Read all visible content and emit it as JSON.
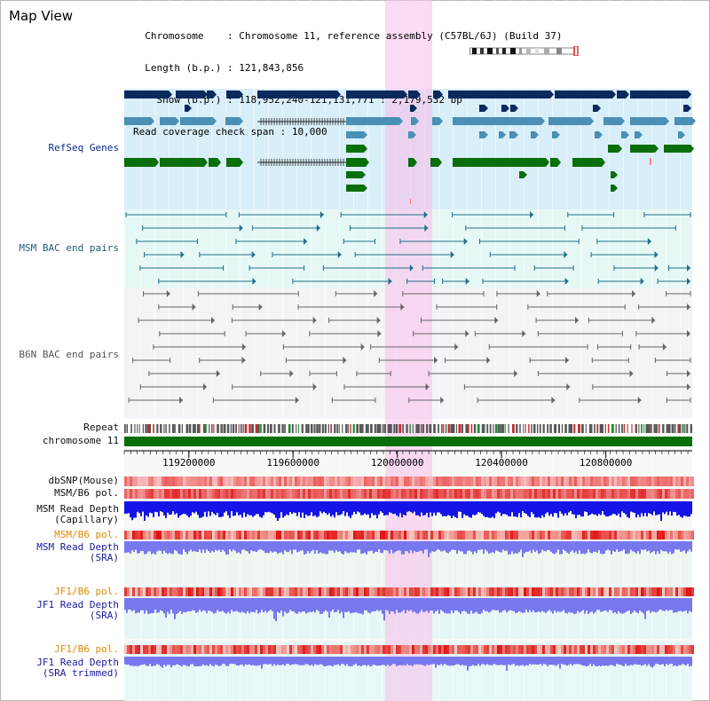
{
  "app": {
    "title": "Map View"
  },
  "info": {
    "rows": [
      {
        "label": "  Chromosome    ",
        "value": "Chromosome 11, reference assembly (C57BL/6J) (Build 37)"
      },
      {
        "label": "  Length (b.p.) ",
        "value": "121,843,856"
      },
      {
        "label": "    Show (b.p.) ",
        "value": "118,952,240-121,131,771 : 2,179,532 bp"
      },
      {
        "label": "Read coverage check span ",
        "value": "10,000"
      }
    ]
  },
  "tracks": {
    "refseq": "RefSeq Genes",
    "msm_bac": "MSM BAC end pairs",
    "b6n_bac": "B6N BAC end pairs",
    "repeat": "Repeat",
    "chromosome": "chromosome 11",
    "dbsnp": "dbSNP(Mouse)",
    "msm_b6_pol": "MSM/B6 pol.",
    "msm_depth_cap_1": "MSM Read Depth",
    "msm_depth_cap_2": "(Capillary)",
    "msm_b6_pol_sra": "MSM/B6 pol.",
    "msm_depth_sra_1": "MSM Read Depth",
    "msm_depth_sra_2": "(SRA)",
    "jf1_b6_pol": "JF1/B6 pol.",
    "jf1_depth_sra_1": "JF1 Read Depth",
    "jf1_depth_sra_2": "(SRA)",
    "jf1_b6_pol_trim": "JF1/B6 pol.",
    "jf1_depth_trim_1": "JF1 Read Depth",
    "jf1_depth_trim_2": "(SRA trimmed)"
  },
  "axis": {
    "ticks": [
      {
        "value": 119200000,
        "label": "119200000"
      },
      {
        "value": 119600000,
        "label": "119600000"
      },
      {
        "value": 120000000,
        "label": "120000000"
      },
      {
        "value": 120400000,
        "label": "120400000"
      },
      {
        "value": 120800000,
        "label": "120800000"
      }
    ],
    "range": [
      118952240,
      121131771
    ]
  },
  "colors": {
    "refseq_navy": "#0a2a5e",
    "refseq_steel": "#4a8fb5",
    "refseq_green": "#0a6e0a",
    "msm_bac": "#1f6f8b",
    "b6n_bac": "#666666",
    "chromosome": "#0a6e0a",
    "highlight": "#f7c8ec",
    "depth_dark_blue": "#1414e6",
    "depth_light_blue": "#7878ee"
  }
}
